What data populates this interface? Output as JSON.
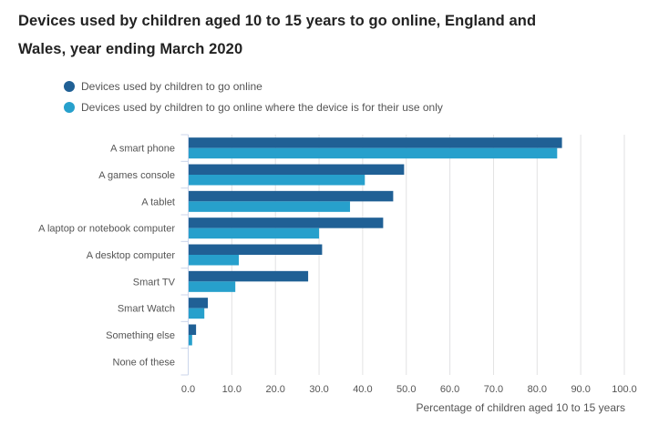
{
  "chart_data": {
    "type": "bar",
    "orientation": "horizontal",
    "title": "Devices used by children aged 10 to 15 years to go online, England and Wales, year ending March 2020",
    "xlabel": "Percentage of children aged 10 to 15 years",
    "ylabel": "",
    "xlim": [
      0,
      100
    ],
    "x_ticks": [
      "0.0",
      "10.0",
      "20.0",
      "30.0",
      "40.0",
      "50.0",
      "60.0",
      "70.0",
      "80.0",
      "90.0",
      "100.0"
    ],
    "x_tick_values": [
      0,
      10,
      20,
      30,
      40,
      50,
      60,
      70,
      80,
      90,
      100
    ],
    "grid": "vertical",
    "legend_position": "top-left",
    "categories": [
      "A smart phone",
      "A games console",
      "A tablet",
      "A laptop or notebook computer",
      "A desktop computer",
      "Smart TV",
      "Smart Watch",
      "Something else",
      "None of these"
    ],
    "series": [
      {
        "name": "Devices used by children to go online",
        "color": "#206095",
        "values": [
          85.7,
          49.5,
          47.0,
          44.7,
          30.7,
          27.5,
          4.5,
          1.8,
          0
        ]
      },
      {
        "name": "Devices used by children to go online where the device is for their use only",
        "color": "#27a0cc",
        "values": [
          84.6,
          40.5,
          37.1,
          30.0,
          11.6,
          10.8,
          3.7,
          0.9,
          0
        ]
      }
    ]
  }
}
